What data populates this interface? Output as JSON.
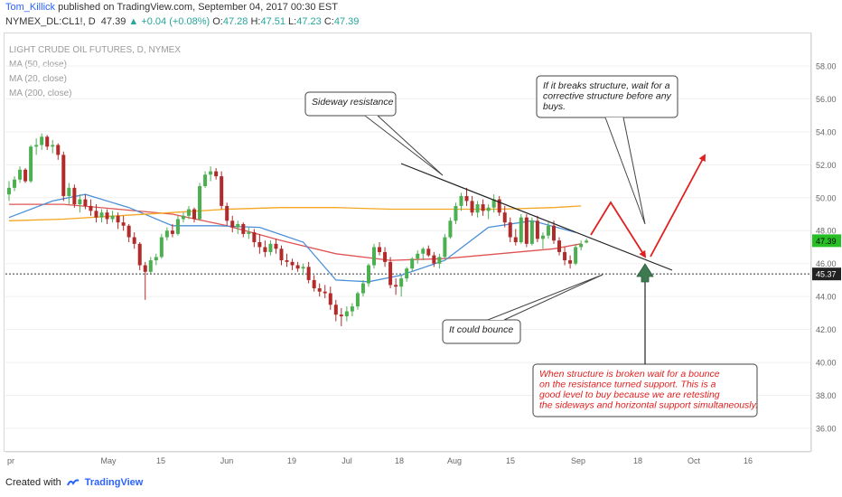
{
  "header": {
    "author": "Tom_Killick",
    "published": "published on TradingView.com, September 04, 2017 00:30 EST",
    "symbol": "NYMEX_DL:CL1!, D",
    "last": "47.39",
    "change": "+0.04 (+0.08%)",
    "open_label": "O:",
    "open": "47.28",
    "high_label": "H:",
    "high": "47.51",
    "low_label": "L:",
    "low": "47.23",
    "close_label": "C:",
    "close": "47.39"
  },
  "legend": {
    "title": "LIGHT CRUDE OIL FUTURES, D, NYMEX",
    "ma50": "MA (50, close)",
    "ma20": "MA (20, close)",
    "ma200": "MA (200, close)"
  },
  "footer": {
    "created_with": "Created with",
    "brand": "TradingView"
  },
  "colors": {
    "up": "#4caf50",
    "down": "#b22b2b",
    "ma50": "#e05353",
    "ma20": "#4a90d9",
    "ma200": "#f5a623",
    "annotation_red": "#e02020",
    "support_arrow": "#3d7a50",
    "price_badge": "#26c026"
  },
  "chart_data": {
    "type": "candlestick",
    "title": "LIGHT CRUDE OIL FUTURES, D, NYMEX",
    "ylim": [
      35,
      59
    ],
    "y_ticks": [
      36,
      38,
      40,
      42,
      44,
      46,
      48,
      50,
      52,
      54,
      56,
      58
    ],
    "y_tick_labels": [
      "36.00",
      "38.00",
      "40.00",
      "42.00",
      "44.00",
      "46.00",
      "48.00",
      "50.00",
      "52.00",
      "54.00",
      "56.00",
      "58.00"
    ],
    "x_tick_labels": [
      "pr",
      "May",
      "15",
      "Jun",
      "19",
      "Jul",
      "18",
      "Aug",
      "15",
      "Sep",
      "18",
      "Oct",
      "16"
    ],
    "last_price_label": "47.39",
    "support_label": "45.37",
    "support_level": 45.37,
    "candles": [
      [
        50.2,
        51.0,
        49.8,
        50.6
      ],
      [
        50.6,
        51.3,
        50.4,
        51.1
      ],
      [
        51.1,
        51.9,
        50.9,
        51.7
      ],
      [
        51.7,
        51.8,
        50.9,
        51.0
      ],
      [
        51.0,
        53.2,
        50.9,
        53.1
      ],
      [
        53.1,
        53.6,
        52.6,
        53.2
      ],
      [
        53.2,
        53.9,
        52.9,
        53.7
      ],
      [
        53.7,
        53.8,
        52.9,
        53.1
      ],
      [
        53.1,
        53.5,
        52.7,
        53.2
      ],
      [
        53.2,
        53.3,
        52.3,
        52.6
      ],
      [
        52.6,
        52.8,
        49.8,
        50.1
      ],
      [
        50.1,
        50.9,
        49.6,
        50.6
      ],
      [
        50.6,
        50.8,
        49.4,
        49.6
      ],
      [
        49.6,
        50.2,
        49.1,
        49.9
      ],
      [
        49.9,
        50.2,
        49.3,
        49.5
      ],
      [
        49.5,
        49.9,
        48.9,
        49.2
      ],
      [
        49.2,
        49.6,
        48.5,
        48.8
      ],
      [
        48.8,
        49.3,
        48.5,
        49.1
      ],
      [
        49.1,
        49.3,
        48.4,
        48.7
      ],
      [
        48.7,
        49.2,
        48.5,
        48.9
      ],
      [
        48.9,
        49.1,
        48.1,
        48.5
      ],
      [
        48.5,
        48.9,
        48.0,
        48.3
      ],
      [
        48.3,
        48.4,
        47.3,
        47.6
      ],
      [
        47.6,
        47.9,
        46.9,
        47.2
      ],
      [
        47.2,
        47.3,
        45.6,
        45.9
      ],
      [
        45.9,
        46.1,
        43.8,
        45.5
      ],
      [
        45.5,
        46.4,
        45.4,
        46.2
      ],
      [
        46.2,
        46.6,
        45.9,
        46.4
      ],
      [
        46.4,
        47.8,
        46.3,
        47.6
      ],
      [
        47.6,
        48.2,
        47.4,
        48.0
      ],
      [
        48.0,
        48.4,
        47.6,
        47.8
      ],
      [
        47.8,
        48.9,
        47.7,
        48.7
      ],
      [
        48.7,
        49.1,
        48.5,
        48.9
      ],
      [
        48.9,
        49.5,
        48.7,
        49.3
      ],
      [
        49.3,
        49.4,
        48.5,
        48.7
      ],
      [
        48.7,
        50.9,
        48.6,
        50.7
      ],
      [
        50.7,
        51.6,
        50.6,
        51.4
      ],
      [
        51.4,
        51.9,
        51.0,
        51.6
      ],
      [
        51.6,
        51.8,
        51.1,
        51.3
      ],
      [
        51.3,
        51.6,
        49.3,
        49.5
      ],
      [
        49.5,
        49.7,
        48.3,
        48.6
      ],
      [
        48.6,
        48.9,
        47.9,
        48.2
      ],
      [
        48.2,
        48.6,
        47.8,
        48.4
      ],
      [
        48.4,
        48.5,
        47.6,
        47.8
      ],
      [
        47.8,
        48.2,
        47.5,
        47.9
      ],
      [
        47.9,
        48.1,
        47.0,
        47.3
      ],
      [
        47.3,
        47.8,
        46.6,
        47.0
      ],
      [
        47.0,
        47.4,
        46.4,
        46.7
      ],
      [
        46.7,
        47.4,
        46.5,
        47.2
      ],
      [
        47.2,
        47.5,
        46.6,
        46.9
      ],
      [
        46.9,
        47.1,
        45.9,
        46.2
      ],
      [
        46.2,
        46.6,
        45.8,
        46.1
      ],
      [
        46.1,
        46.3,
        45.6,
        45.9
      ],
      [
        45.9,
        46.1,
        45.5,
        45.7
      ],
      [
        45.7,
        46.0,
        45.3,
        45.8
      ],
      [
        45.8,
        46.1,
        44.8,
        45.0
      ],
      [
        45.0,
        45.3,
        44.3,
        44.5
      ],
      [
        44.5,
        44.8,
        44.0,
        44.3
      ],
      [
        44.3,
        44.7,
        43.9,
        44.2
      ],
      [
        44.2,
        44.6,
        43.2,
        43.5
      ],
      [
        43.5,
        43.8,
        42.5,
        42.9
      ],
      [
        42.9,
        43.3,
        42.2,
        42.8
      ],
      [
        42.8,
        43.4,
        42.5,
        43.1
      ],
      [
        43.1,
        43.6,
        42.8,
        43.4
      ],
      [
        43.4,
        44.3,
        43.2,
        44.2
      ],
      [
        44.2,
        45.0,
        44.0,
        44.8
      ],
      [
        44.8,
        46.0,
        44.6,
        45.9
      ],
      [
        45.9,
        47.2,
        45.7,
        47.0
      ],
      [
        47.0,
        47.3,
        46.5,
        46.7
      ],
      [
        46.7,
        47.0,
        45.8,
        46.1
      ],
      [
        46.1,
        46.4,
        44.5,
        44.7
      ],
      [
        44.7,
        45.1,
        44.1,
        44.6
      ],
      [
        44.6,
        45.3,
        44.0,
        45.1
      ],
      [
        45.1,
        45.8,
        44.9,
        45.7
      ],
      [
        45.7,
        46.4,
        45.5,
        46.3
      ],
      [
        46.3,
        46.8,
        46.0,
        46.6
      ],
      [
        46.6,
        47.0,
        46.2,
        46.9
      ],
      [
        46.9,
        47.1,
        46.4,
        46.5
      ],
      [
        46.5,
        46.7,
        45.8,
        46.0
      ],
      [
        46.0,
        46.6,
        45.7,
        46.4
      ],
      [
        46.4,
        47.8,
        46.3,
        47.6
      ],
      [
        47.6,
        48.8,
        47.5,
        48.6
      ],
      [
        48.6,
        49.7,
        48.4,
        49.5
      ],
      [
        49.5,
        50.3,
        49.2,
        50.1
      ],
      [
        50.1,
        50.6,
        49.5,
        49.8
      ],
      [
        49.8,
        50.1,
        48.9,
        49.1
      ],
      [
        49.1,
        49.8,
        48.8,
        49.6
      ],
      [
        49.6,
        49.9,
        48.9,
        49.2
      ],
      [
        49.2,
        49.6,
        48.7,
        49.4
      ],
      [
        49.4,
        50.2,
        49.1,
        49.9
      ],
      [
        49.9,
        50.1,
        48.9,
        49.1
      ],
      [
        49.1,
        49.5,
        48.2,
        48.5
      ],
      [
        48.5,
        48.8,
        47.3,
        47.6
      ],
      [
        47.6,
        48.1,
        47.1,
        47.3
      ],
      [
        47.3,
        49.0,
        47.2,
        48.8
      ],
      [
        48.8,
        49.0,
        47.0,
        47.2
      ],
      [
        47.2,
        48.8,
        47.1,
        48.6
      ],
      [
        48.6,
        48.9,
        47.3,
        47.5
      ],
      [
        47.5,
        47.9,
        46.9,
        47.7
      ],
      [
        47.7,
        48.5,
        47.5,
        48.3
      ],
      [
        48.3,
        48.6,
        47.2,
        47.4
      ],
      [
        47.4,
        47.6,
        46.5,
        46.7
      ],
      [
        46.7,
        47.0,
        45.9,
        46.2
      ],
      [
        46.2,
        46.5,
        45.7,
        46.0
      ],
      [
        46.0,
        47.2,
        45.9,
        47.0
      ],
      [
        47.0,
        47.4,
        46.8,
        47.2
      ],
      [
        47.28,
        47.51,
        47.23,
        47.39
      ]
    ],
    "series": [
      {
        "name": "MA (50, close)",
        "x_index": [
          0,
          10,
          20,
          30,
          40,
          50,
          60,
          70,
          80,
          90,
          100,
          105
        ],
        "values": [
          49.6,
          49.6,
          49.3,
          49.0,
          48.3,
          47.4,
          46.6,
          46.2,
          46.3,
          46.6,
          46.9,
          47.2
        ]
      },
      {
        "name": "MA (20, close)",
        "x_index": [
          0,
          8,
          14,
          22,
          30,
          38,
          46,
          54,
          60,
          66,
          72,
          80,
          88,
          96,
          104
        ],
        "values": [
          48.8,
          49.8,
          50.2,
          49.4,
          48.3,
          48.3,
          48.2,
          47.3,
          45.0,
          44.9,
          45.3,
          46.2,
          48.2,
          48.6,
          47.9
        ]
      },
      {
        "name": "MA (200, close)",
        "x_index": [
          0,
          10,
          20,
          30,
          40,
          50,
          60,
          70,
          80,
          90,
          100,
          105
        ],
        "values": [
          48.6,
          48.7,
          48.9,
          49.1,
          49.3,
          49.4,
          49.4,
          49.3,
          49.3,
          49.3,
          49.4,
          49.5
        ]
      }
    ],
    "annotations": [
      {
        "id": "sideway",
        "text": "Sideway resistance"
      },
      {
        "id": "breaks",
        "lines": [
          "If it breaks structure, wait for a",
          "corrective structure before any",
          "buys."
        ]
      },
      {
        "id": "bounce",
        "text": "It could bounce"
      },
      {
        "id": "broken",
        "lines": [
          "When structure is broken wait for a bounce",
          "on the resistance turned support. This is a",
          "good level to buy because we are retesting",
          "the sideways and horizontal support simultaneously."
        ]
      }
    ]
  }
}
